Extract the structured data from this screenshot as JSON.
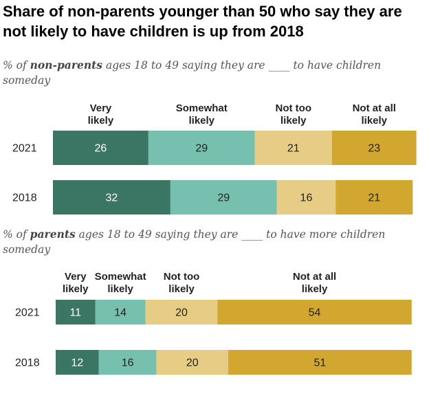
{
  "title": "Share of non-parents younger than 50 who say they are not likely to have children is up from 2018",
  "colors": {
    "very_likely": "#3b7564",
    "somewhat_likely": "#77c0b0",
    "not_too_likely": "#e6cc84",
    "not_at_all_likely": "#d2a72f",
    "text_dark": "#222222"
  },
  "chart_data": [
    {
      "type": "bar",
      "orientation": "horizontal",
      "stacked": true,
      "subtitle": {
        "pre": "% of ",
        "bold": "non-parents",
        "post": " ages 18 to 49 saying they are ____ to have children someday"
      },
      "categories": [
        "2021",
        "2018"
      ],
      "series": [
        {
          "name": "Very likely",
          "values": [
            26,
            32
          ]
        },
        {
          "name": "Somewhat likely",
          "values": [
            29,
            29
          ]
        },
        {
          "name": "Not too likely",
          "values": [
            21,
            16
          ]
        },
        {
          "name": "Not at all likely",
          "values": [
            23,
            21
          ]
        }
      ],
      "xlim": [
        0,
        100
      ],
      "grid": false,
      "legend": "top"
    },
    {
      "type": "bar",
      "orientation": "horizontal",
      "stacked": true,
      "subtitle": {
        "pre": "% of ",
        "bold": "parents",
        "post": " ages 18 to 49 saying they are ____ to have more children someday"
      },
      "categories": [
        "2021",
        "2018"
      ],
      "series": [
        {
          "name": "Very likely",
          "values": [
            11,
            12
          ]
        },
        {
          "name": "Somewhat likely",
          "values": [
            14,
            16
          ]
        },
        {
          "name": "Not too likely",
          "values": [
            20,
            20
          ]
        },
        {
          "name": "Not at all likely",
          "values": [
            54,
            51
          ]
        }
      ],
      "xlim": [
        0,
        100
      ],
      "grid": false,
      "legend": "top"
    }
  ]
}
